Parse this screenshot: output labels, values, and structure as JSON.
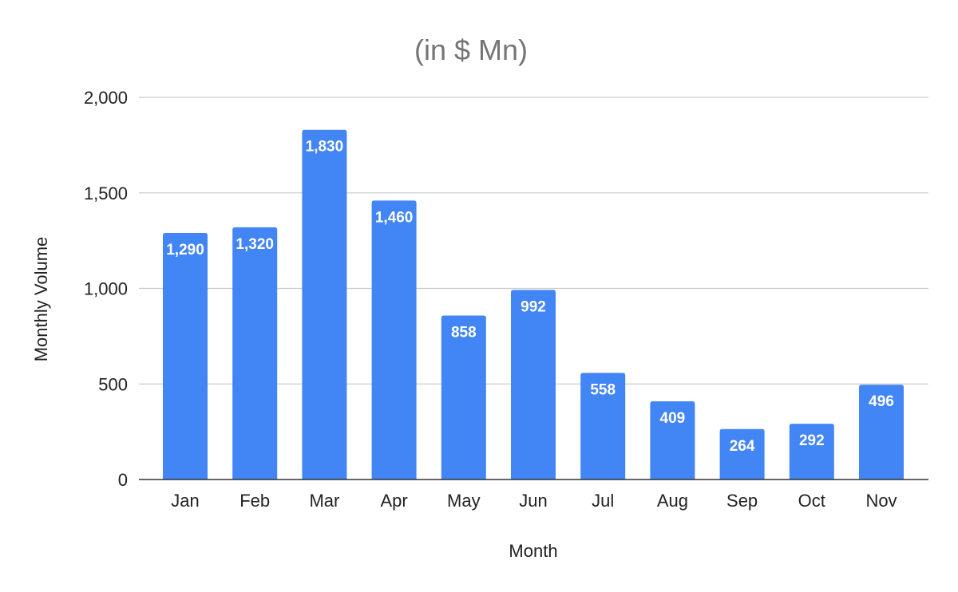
{
  "chart_data": {
    "type": "bar",
    "title": "(in $ Mn)",
    "xlabel": "Month",
    "ylabel": "Monthly Volume",
    "categories": [
      "Jan",
      "Feb",
      "Mar",
      "Apr",
      "May",
      "Jun",
      "Jul",
      "Aug",
      "Sep",
      "Oct",
      "Nov"
    ],
    "values": [
      1290,
      1320,
      1830,
      1460,
      858,
      992,
      558,
      409,
      264,
      292,
      496
    ],
    "data_labels": [
      "1,290",
      "1,320",
      "1,830",
      "1,460",
      "858",
      "992",
      "558",
      "409",
      "264",
      "292",
      "496"
    ],
    "y_ticks": [
      0,
      500,
      1000,
      1500,
      2000
    ],
    "y_tick_labels": [
      "0",
      "500",
      "1,000",
      "1,500",
      "2,000"
    ],
    "ylim": [
      0,
      2000
    ],
    "grid": true,
    "legend": "none",
    "bar_color": "#4285f4"
  }
}
